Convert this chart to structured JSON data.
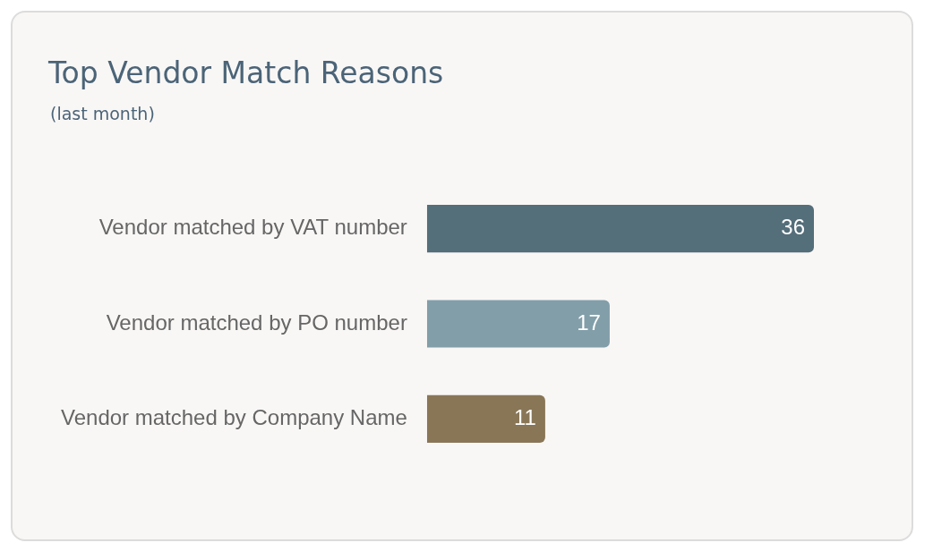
{
  "chart_data": {
    "type": "bar",
    "orientation": "horizontal",
    "title": "Top Vendor Match Reasons",
    "subtitle": "(last month)",
    "categories": [
      "Vendor matched by VAT number",
      "Vendor matched by PO number",
      "Vendor matched by Company Name"
    ],
    "values": [
      36,
      17,
      11
    ],
    "colors": [
      "#546e7a",
      "#829ea9",
      "#887657"
    ],
    "data_labels": true
  }
}
